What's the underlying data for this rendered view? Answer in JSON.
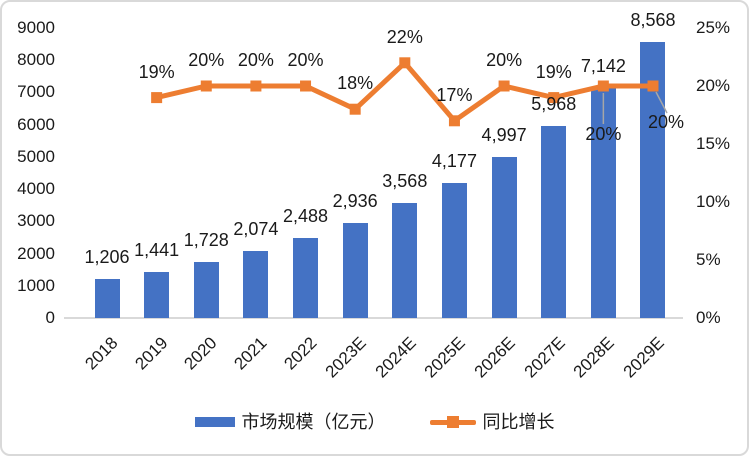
{
  "chart_data": {
    "type": "combo",
    "categories": [
      "2018",
      "2019",
      "2020",
      "2021",
      "2022",
      "2023E",
      "2024E",
      "2025E",
      "2026E",
      "2027E",
      "2028E",
      "2029E"
    ],
    "series": [
      {
        "name": "市场规模（亿元）",
        "type": "bar",
        "axis": "left",
        "color": "#4472C4",
        "values": [
          1206,
          1441,
          1728,
          2074,
          2488,
          2936,
          3568,
          4177,
          4997,
          5968,
          7142,
          8568
        ],
        "labels": [
          "1,206",
          "1,441",
          "1,728",
          "2,074",
          "2,488",
          "2,936",
          "3,568",
          "4,177",
          "4,997",
          "5,968",
          "7,142",
          "8,568"
        ]
      },
      {
        "name": "同比增长",
        "type": "line",
        "axis": "right",
        "color": "#ED7D31",
        "marker": "square",
        "values": [
          null,
          19,
          20,
          20,
          20,
          18,
          22,
          17,
          20,
          19,
          20,
          20
        ],
        "labels": [
          null,
          "19%",
          "20%",
          "20%",
          "20%",
          "18%",
          "22%",
          "17%",
          "20%",
          "19%",
          "20%",
          "20%"
        ],
        "label_placement": [
          null,
          "above",
          "above",
          "above",
          "above",
          "above",
          "above",
          "above",
          "above",
          "above",
          "below",
          "below-right"
        ]
      }
    ],
    "left_axis": {
      "min": 0,
      "max": 9000,
      "step": 1000,
      "ticks": [
        "0",
        "1000",
        "2000",
        "3000",
        "4000",
        "5000",
        "6000",
        "7000",
        "8000",
        "9000"
      ]
    },
    "right_axis": {
      "min": 0,
      "max": 25,
      "step": 5,
      "ticks": [
        "0%",
        "5%",
        "10%",
        "15%",
        "20%",
        "25%"
      ]
    },
    "grid": false,
    "legend_position": "bottom",
    "leader_line_color": "#A6A6A6",
    "baseline_color": "#D9D9D9"
  }
}
